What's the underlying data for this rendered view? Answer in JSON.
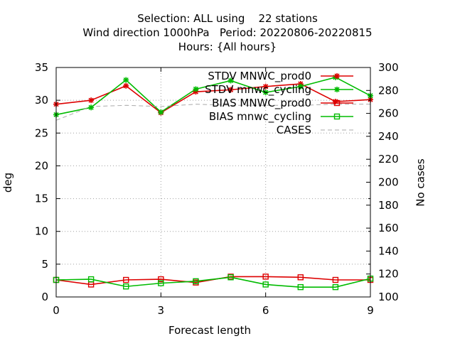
{
  "chart_data": {
    "type": "line",
    "title_lines": [
      "Selection: ALL using    22 stations",
      "Wind direction 1000hPa   Period: 20220806-20220815",
      "Hours: {All hours}"
    ],
    "xlabel": "Forecast length",
    "ylabel": "deg",
    "y2label": "No cases",
    "xlim": [
      0,
      9
    ],
    "ylim": [
      0,
      35
    ],
    "y2lim": [
      100,
      300
    ],
    "xticks": [
      0,
      3,
      6,
      9
    ],
    "yticks": [
      0,
      5,
      10,
      15,
      20,
      25,
      30,
      35
    ],
    "y2ticks": [
      100,
      120,
      140,
      160,
      180,
      200,
      220,
      240,
      260,
      280,
      300
    ],
    "grid": true,
    "legend_position": "top-right",
    "x": [
      0,
      1,
      2,
      3,
      4,
      5,
      6,
      7,
      8,
      9
    ],
    "series": [
      {
        "name": "STDV MNWC_prod0",
        "axis": "y",
        "color": "#dd0000",
        "marker": "star",
        "dash": "solid",
        "values": [
          29.4,
          30.0,
          32.2,
          28.1,
          31.3,
          31.6,
          32.1,
          32.5,
          29.8,
          30.1
        ]
      },
      {
        "name": "STDV mnwc_cycling",
        "axis": "y",
        "color": "#00bb00",
        "marker": "star",
        "dash": "solid",
        "values": [
          27.8,
          28.9,
          33.1,
          28.2,
          31.7,
          33.0,
          31.2,
          32.1,
          33.5,
          30.7
        ]
      },
      {
        "name": "BIAS MNWC_prod0",
        "axis": "y",
        "color": "#dd0000",
        "marker": "square",
        "dash": "solid",
        "values": [
          2.6,
          1.9,
          2.6,
          2.7,
          2.2,
          3.1,
          3.1,
          3.0,
          2.6,
          2.6
        ]
      },
      {
        "name": "BIAS mnwc_cycling",
        "axis": "y",
        "color": "#00bb00",
        "marker": "square",
        "dash": "solid",
        "values": [
          2.6,
          2.7,
          1.6,
          2.1,
          2.4,
          3.0,
          1.9,
          1.5,
          1.5,
          2.8
        ]
      },
      {
        "name": "CASES",
        "axis": "y2",
        "color": "#aaaaaa",
        "marker": "none",
        "dash": "dashed",
        "values": [
          254,
          266,
          267,
          266,
          268,
          267,
          267,
          267,
          268,
          268
        ]
      }
    ]
  }
}
